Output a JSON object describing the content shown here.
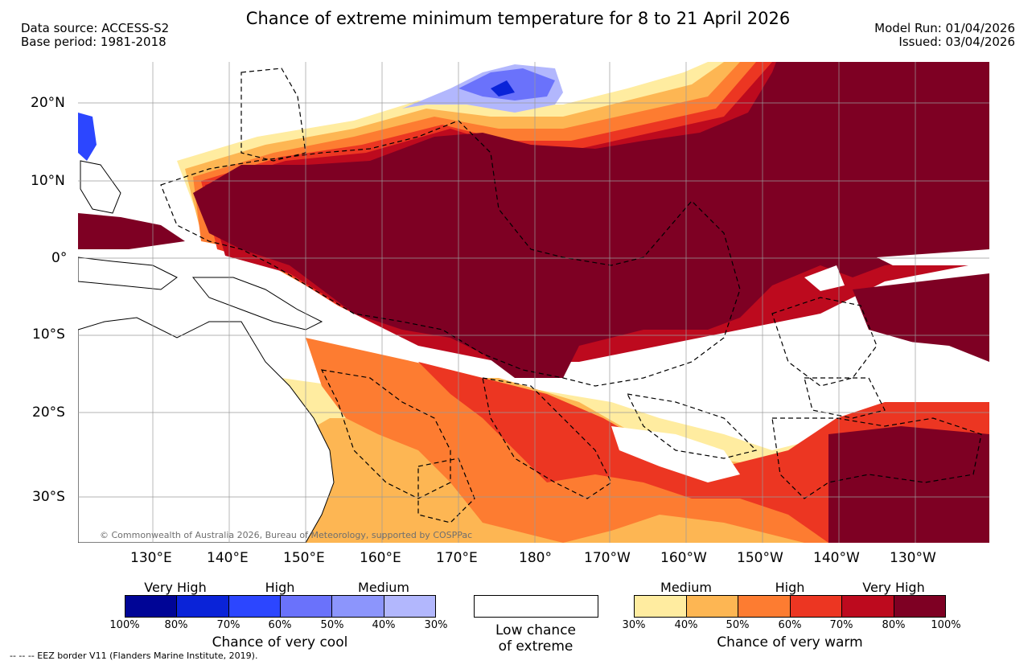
{
  "header": {
    "title": "Chance of extreme minimum temperature for 8 to 21 April 2026",
    "data_source": "Data source: ACCESS-S2",
    "base_period": "Base period: 1981-2018",
    "model_run": "Model Run: 01/04/2026",
    "issued": "Issued: 03/04/2026"
  },
  "map": {
    "copyright": "© Commonwealth of Australia 2026, Bureau of Meteorology, supported by COSPPac",
    "lat_labels": [
      "20°N",
      "10°N",
      "0°",
      "10°S",
      "20°S",
      "30°S"
    ],
    "lon_labels": [
      "130°E",
      "140°E",
      "150°E",
      "160°E",
      "170°E",
      "180°",
      "170°W",
      "160°W",
      "150°W",
      "140°W",
      "130°W"
    ]
  },
  "legend": {
    "cool": {
      "categories": [
        "Very High",
        "High",
        "Medium"
      ],
      "ticks": [
        "100%",
        "80%",
        "70%",
        "60%",
        "50%",
        "40%",
        "30%"
      ],
      "colors": [
        "#000596",
        "#0a23d8",
        "#2c46ff",
        "#6a72fb",
        "#8c95fc",
        "#b2b7fd"
      ],
      "caption": "Chance of very cool"
    },
    "neutral": {
      "line1": "Low chance",
      "line2": "of extreme"
    },
    "warm": {
      "categories": [
        "Medium",
        "High",
        "Very High"
      ],
      "ticks": [
        "30%",
        "40%",
        "50%",
        "60%",
        "70%",
        "80%",
        "100%"
      ],
      "colors": [
        "#ffeca0",
        "#fdb653",
        "#fd7c31",
        "#ec3622",
        "#bd0a1e",
        "#7e0023"
      ],
      "caption": "Chance of very warm"
    }
  },
  "footnote": "--  --  -- EEZ border V11 (Flanders Marine Institute, 2019)."
}
